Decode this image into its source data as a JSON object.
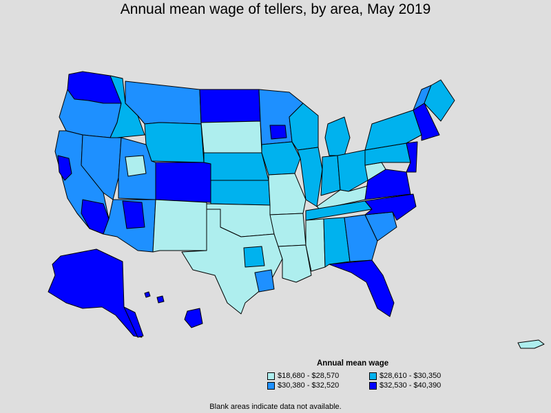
{
  "title": "Annual mean wage of tellers, by area, May 2019",
  "legend": {
    "title": "Annual mean wage",
    "items": [
      {
        "label": "$18,680 - $28,570",
        "color": "#aeeeee"
      },
      {
        "label": "$28,610 - $30,350",
        "color": "#00b2ee"
      },
      {
        "label": "$30,380 - $32,520",
        "color": "#1e90ff"
      },
      {
        "label": "$32,530 - $40,390",
        "color": "#0000ff"
      }
    ]
  },
  "note": "Blank areas indicate data not available."
}
